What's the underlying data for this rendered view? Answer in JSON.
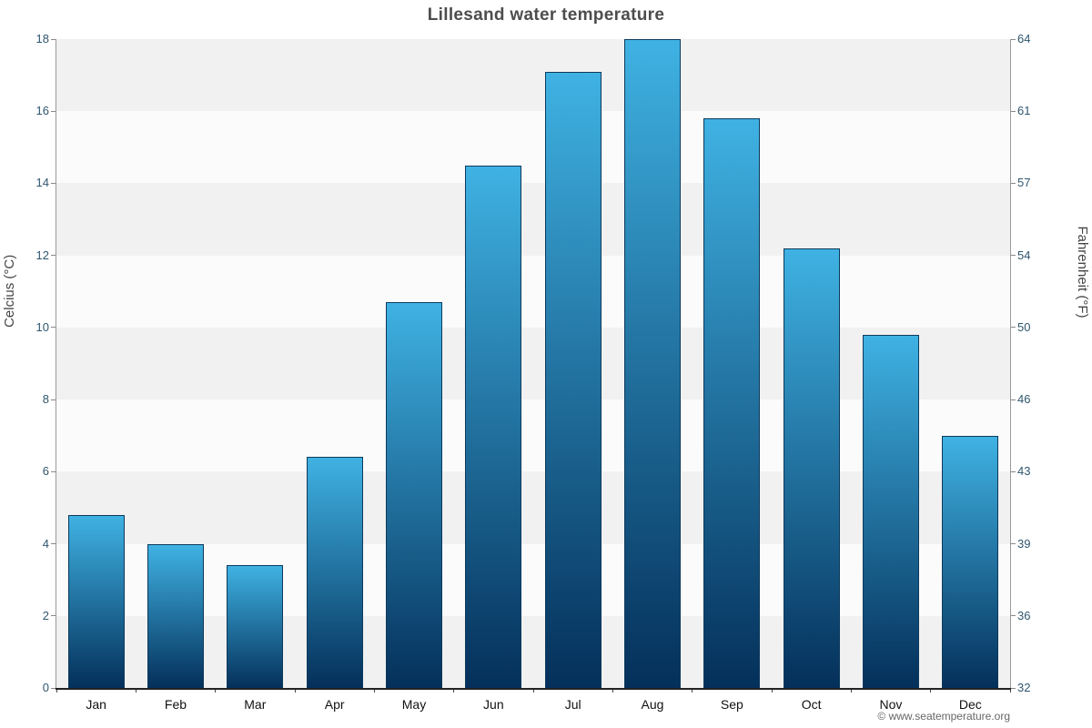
{
  "title": "Lillesand water temperature",
  "footer": "© www.seatemperature.org",
  "axes": {
    "left_label": "Celcius (°C)",
    "right_label": "Fahrenheit (°F)"
  },
  "chart_data": {
    "type": "bar",
    "title": "Lillesand water temperature",
    "categories": [
      "Jan",
      "Feb",
      "Mar",
      "Apr",
      "May",
      "Jun",
      "Jul",
      "Aug",
      "Sep",
      "Oct",
      "Nov",
      "Dec"
    ],
    "values": [
      4.8,
      4.0,
      3.4,
      6.4,
      10.7,
      14.5,
      17.1,
      18.0,
      15.8,
      12.2,
      9.8,
      7.0
    ],
    "xlabel": "",
    "ylabel_left": "Celcius (°C)",
    "ylabel_right": "Fahrenheit (°F)",
    "ylim": [
      0,
      18
    ],
    "y_ticks_celsius": [
      0,
      2,
      4,
      6,
      8,
      10,
      12,
      14,
      16,
      18
    ],
    "y_ticks_fahrenheit": [
      "32",
      "36",
      "39",
      "43",
      "46",
      "50",
      "54",
      "57",
      "61",
      "64"
    ],
    "grid": "banded-horizontal",
    "legend": "none",
    "colors": {
      "bar_top": "#3fb2e3",
      "bar_bottom": "#04305a",
      "bar_border": "#0e3a5c",
      "band_dark": "#f1f1f1",
      "band_light": "#fbfbfb",
      "tick_text": "#2f566e"
    }
  }
}
